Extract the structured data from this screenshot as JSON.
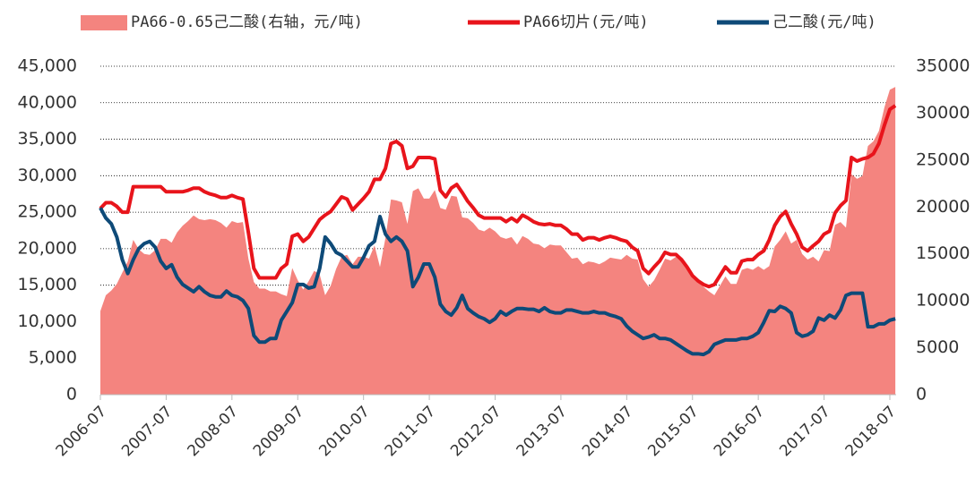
{
  "chart_data": {
    "type": "line",
    "x": [
      "2006-07",
      "2006-08",
      "2006-09",
      "2006-10",
      "2006-11",
      "2006-12",
      "2007-01",
      "2007-02",
      "2007-03",
      "2007-04",
      "2007-05",
      "2007-06",
      "2007-07",
      "2007-08",
      "2007-09",
      "2007-10",
      "2007-11",
      "2007-12",
      "2008-01",
      "2008-02",
      "2008-03",
      "2008-04",
      "2008-05",
      "2008-06",
      "2008-07",
      "2008-08",
      "2008-09",
      "2008-10",
      "2008-11",
      "2008-12",
      "2009-01",
      "2009-02",
      "2009-03",
      "2009-04",
      "2009-05",
      "2009-06",
      "2009-07",
      "2009-08",
      "2009-09",
      "2009-10",
      "2009-11",
      "2009-12",
      "2010-01",
      "2010-02",
      "2010-03",
      "2010-04",
      "2010-05",
      "2010-06",
      "2010-07",
      "2010-08",
      "2010-09",
      "2010-10",
      "2010-11",
      "2010-12",
      "2011-01",
      "2011-02",
      "2011-03",
      "2011-04",
      "2011-05",
      "2011-06",
      "2011-07",
      "2011-08",
      "2011-09",
      "2011-10",
      "2011-11",
      "2011-12",
      "2012-01",
      "2012-02",
      "2012-03",
      "2012-04",
      "2012-05",
      "2012-06",
      "2012-07",
      "2012-08",
      "2012-09",
      "2012-10",
      "2012-11",
      "2012-12",
      "2013-01",
      "2013-02",
      "2013-03",
      "2013-04",
      "2013-05",
      "2013-06",
      "2013-07",
      "2013-08",
      "2013-09",
      "2013-10",
      "2013-11",
      "2013-12",
      "2014-01",
      "2014-02",
      "2014-03",
      "2014-04",
      "2014-05",
      "2014-06",
      "2014-07",
      "2014-08",
      "2014-09",
      "2014-10",
      "2014-11",
      "2014-12",
      "2015-01",
      "2015-02",
      "2015-03",
      "2015-04",
      "2015-05",
      "2015-06",
      "2015-07",
      "2015-08",
      "2015-09",
      "2015-10",
      "2015-11",
      "2015-12",
      "2016-01",
      "2016-02",
      "2016-03",
      "2016-04",
      "2016-05",
      "2016-06",
      "2016-07",
      "2016-08",
      "2016-09",
      "2016-10",
      "2016-11",
      "2016-12",
      "2017-01",
      "2017-02",
      "2017-03",
      "2017-04",
      "2017-05",
      "2017-06",
      "2017-07",
      "2017-08",
      "2017-09",
      "2017-10",
      "2017-11",
      "2017-12",
      "2018-01",
      "2018-02",
      "2018-03",
      "2018-04",
      "2018-05",
      "2018-06",
      "2018-07",
      "2018-08"
    ],
    "series": [
      {
        "name": "PA66-0.65己二酸(右轴，元/吨)",
        "type": "area",
        "axis": "y2",
        "color": "#f4847f",
        "values": [
          8900,
          10600,
          11100,
          11800,
          13000,
          14200,
          16500,
          15500,
          15000,
          14900,
          15400,
          16600,
          16600,
          16200,
          17300,
          18000,
          18500,
          19100,
          18700,
          18600,
          18700,
          18600,
          18300,
          17800,
          18500,
          18300,
          18400,
          14500,
          12000,
          11300,
          11300,
          11000,
          11000,
          10700,
          10500,
          13500,
          12200,
          11200,
          12100,
          13200,
          12800,
          10600,
          11600,
          13400,
          14700,
          14900,
          13900,
          14700,
          14700,
          14500,
          15900,
          13600,
          16700,
          20800,
          20700,
          20500,
          18200,
          21700,
          22000,
          20900,
          20900,
          21800,
          19900,
          19700,
          21200,
          21100,
          18900,
          18800,
          18300,
          17600,
          17400,
          17800,
          17400,
          16800,
          16600,
          16800,
          16000,
          16900,
          16600,
          16100,
          16000,
          15600,
          16000,
          15900,
          15900,
          15200,
          14500,
          14600,
          13900,
          14200,
          14100,
          13900,
          14200,
          14600,
          14500,
          14400,
          14900,
          14500,
          14400,
          12300,
          11500,
          12200,
          13300,
          14500,
          14300,
          14700,
          14300,
          13600,
          12700,
          12000,
          11500,
          11000,
          10600,
          11600,
          12600,
          11800,
          11800,
          13300,
          13500,
          13300,
          13700,
          13300,
          13700,
          15800,
          16500,
          17400,
          16100,
          16500,
          15000,
          14400,
          14700,
          14200,
          15400,
          15300,
          18100,
          18400,
          17800,
          23500,
          23000,
          23300,
          26500,
          27000,
          28100,
          30600,
          32500,
          32800
        ]
      },
      {
        "name": "PA66切片(元/吨)",
        "type": "line",
        "color": "#e8141b",
        "values": [
          25500,
          26300,
          26300,
          25800,
          25000,
          25000,
          28500,
          28500,
          28500,
          28500,
          28500,
          28500,
          27800,
          27800,
          27800,
          27800,
          28000,
          28300,
          28300,
          27800,
          27500,
          27300,
          27000,
          27000,
          27300,
          27000,
          26800,
          22200,
          17300,
          16000,
          16000,
          16000,
          16000,
          17300,
          17900,
          21700,
          22000,
          21000,
          21600,
          22800,
          24000,
          24600,
          25100,
          26100,
          27100,
          26800,
          25300,
          26100,
          26900,
          27800,
          29500,
          29500,
          31000,
          34400,
          34700,
          34100,
          31000,
          31300,
          32500,
          32500,
          32500,
          32300,
          28000,
          27100,
          28300,
          28800,
          27700,
          26500,
          25600,
          24600,
          24200,
          24200,
          24200,
          24200,
          23700,
          24200,
          23700,
          24600,
          24200,
          23700,
          23400,
          23300,
          23400,
          23200,
          23200,
          22700,
          22000,
          22000,
          21200,
          21500,
          21500,
          21200,
          21500,
          21700,
          21500,
          21200,
          21000,
          20200,
          19700,
          17300,
          16600,
          17500,
          18300,
          19500,
          19200,
          19200,
          18500,
          17500,
          16300,
          15600,
          15100,
          14800,
          15100,
          16300,
          17500,
          16700,
          16700,
          18300,
          18500,
          18500,
          19200,
          19700,
          21200,
          23200,
          24400,
          25100,
          23400,
          22000,
          20200,
          19700,
          20400,
          21000,
          22000,
          22400,
          24900,
          25900,
          26600,
          32500,
          32000,
          32300,
          32500,
          33000,
          34400,
          36900,
          39100,
          39600
        ]
      },
      {
        "name": "己二酸(元/吨)",
        "type": "line",
        "color": "#0e4a78",
        "values": [
          25600,
          24200,
          23400,
          21600,
          18500,
          16600,
          18500,
          20000,
          20700,
          21000,
          20200,
          18300,
          17300,
          17800,
          16100,
          15100,
          14600,
          14100,
          14800,
          14100,
          13600,
          13400,
          13400,
          14200,
          13600,
          13400,
          12900,
          11800,
          8100,
          7200,
          7200,
          7700,
          7700,
          10200,
          11400,
          12600,
          15100,
          15100,
          14600,
          14800,
          17300,
          21600,
          20700,
          19500,
          19100,
          18300,
          17500,
          17500,
          18800,
          20400,
          21000,
          24400,
          22000,
          21000,
          21600,
          21000,
          19700,
          14800,
          16100,
          17900,
          17900,
          16100,
          12400,
          11400,
          10900,
          11900,
          13600,
          11800,
          11200,
          10700,
          10400,
          9900,
          10400,
          11400,
          10900,
          11400,
          11800,
          11800,
          11700,
          11700,
          11400,
          11900,
          11400,
          11200,
          11200,
          11600,
          11600,
          11400,
          11200,
          11200,
          11400,
          11200,
          11200,
          10900,
          10700,
          10400,
          9400,
          8700,
          8200,
          7700,
          7900,
          8200,
          7700,
          7700,
          7500,
          7000,
          6500,
          6000,
          5600,
          5600,
          5500,
          5900,
          6900,
          7200,
          7500,
          7500,
          7500,
          7700,
          7700,
          8000,
          8500,
          9900,
          11500,
          11400,
          12100,
          11800,
          11200,
          8500,
          8000,
          8200,
          8700,
          10500,
          10200,
          10900,
          10500,
          11600,
          13600,
          13900,
          13900,
          13900,
          9300,
          9300,
          9700,
          9700,
          10200,
          10400
        ]
      }
    ],
    "ylim": [
      0,
      45000
    ],
    "yticks": [
      0,
      {
        "value": 5000,
        "label": "5,000"
      },
      {
        "value": 10000,
        "label": "10,000"
      },
      {
        "value": 15000,
        "label": "15,000"
      },
      {
        "value": 20000,
        "label": "20,000"
      },
      {
        "value": 25000,
        "label": "25,000"
      },
      {
        "value": 30000,
        "label": "30,000"
      },
      {
        "value": 35000,
        "label": "35,000"
      },
      {
        "value": 40000,
        "label": "40,000"
      },
      {
        "value": 45000,
        "label": "45,000"
      }
    ],
    "y2lim": [
      0,
      35000
    ],
    "y2ticks": [
      0,
      5000,
      10000,
      15000,
      20000,
      25000,
      30000,
      35000
    ],
    "xticks": [
      "2006-07",
      "2007-07",
      "2008-07",
      "2009-07",
      "2010-07",
      "2011-07",
      "2012-07",
      "2013-07",
      "2014-07",
      "2015-07",
      "2016-07",
      "2017-07",
      "2018-07"
    ],
    "grid": true,
    "legend": "top"
  }
}
